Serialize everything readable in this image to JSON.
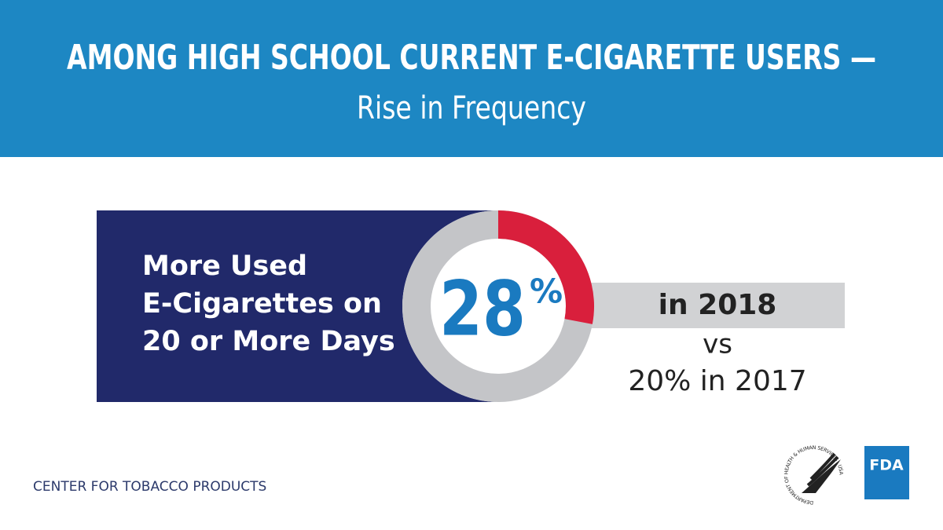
{
  "header": {
    "title": "AMONG HIGH SCHOOL CURRENT E-CIGARETTE USERS —",
    "subtitle": "Rise in Frequency"
  },
  "stat": {
    "lines": [
      "More Used",
      "E-Cigarettes on",
      "20 or More Days"
    ],
    "value": 28,
    "unit": "%",
    "range": [
      0,
      100
    ],
    "color": "#d91f3c",
    "comparison": [
      "in 2018",
      "vs",
      "20% in 2017"
    ]
  },
  "footer": {
    "label": "CENTER FOR TOBACCO PRODUCTS",
    "seal": "DEPARTMENT OF HEALTH & HUMAN SERVICES · USA",
    "logo": "FDA"
  }
}
